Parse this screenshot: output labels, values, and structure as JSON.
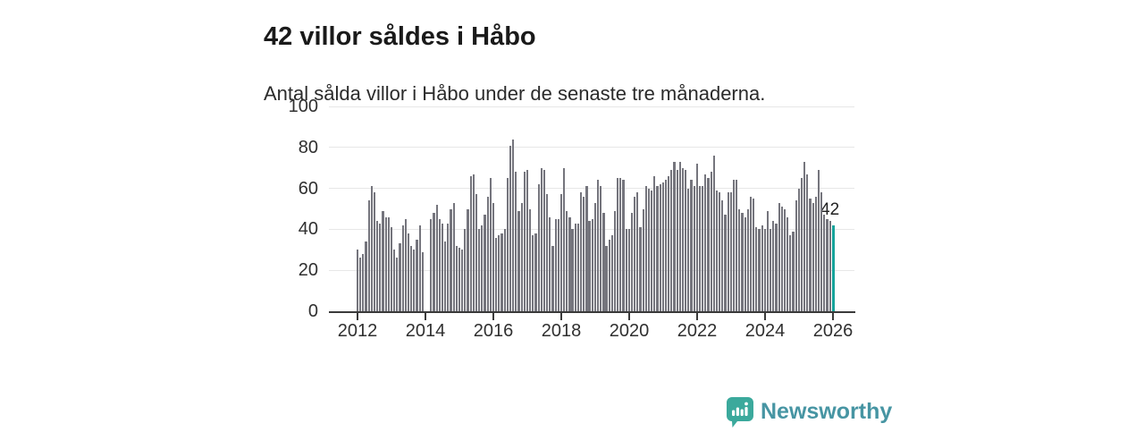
{
  "header": {
    "title": "42 villor såldes i Håbo",
    "subtitle": "Antal sålda villor i Håbo under de senaste tre månaderna."
  },
  "chart_data": {
    "type": "bar",
    "title": "42 villor såldes i Håbo",
    "subtitle": "Antal sålda villor i Håbo under de senaste tre månaderna.",
    "x_frequency": "monthly",
    "x_start": "2012-01",
    "x_end": "2026-01",
    "x_tick_labels": [
      "2012",
      "2014",
      "2016",
      "2018",
      "2020",
      "2022",
      "2024",
      "2026"
    ],
    "y_ticks": [
      0,
      20,
      40,
      60,
      80,
      100
    ],
    "ylim": [
      0,
      100
    ],
    "grid": "horizontal",
    "values": [
      30,
      26,
      28,
      34,
      54,
      61,
      58,
      44,
      43,
      49,
      46,
      46,
      41,
      30,
      26,
      33,
      42,
      45,
      38,
      32,
      30,
      35,
      42,
      29,
      null,
      null,
      45,
      48,
      52,
      45,
      43,
      34,
      43,
      50,
      53,
      32,
      31,
      30,
      40,
      50,
      66,
      67,
      57,
      40,
      42,
      47,
      56,
      65,
      53,
      36,
      37,
      38,
      40,
      65,
      81,
      84,
      68,
      49,
      53,
      68,
      69,
      50,
      37,
      38,
      62,
      70,
      69,
      57,
      46,
      32,
      45,
      45,
      57,
      70,
      49,
      46,
      40,
      43,
      43,
      58,
      56,
      61,
      44,
      45,
      53,
      64,
      61,
      48,
      32,
      35,
      37,
      49,
      65,
      65,
      64,
      40,
      40,
      48,
      56,
      58,
      41,
      50,
      61,
      60,
      59,
      66,
      61,
      62,
      63,
      64,
      66,
      69,
      73,
      69,
      73,
      70,
      69,
      60,
      64,
      61,
      72,
      61,
      61,
      67,
      65,
      68,
      76,
      59,
      58,
      54,
      47,
      58,
      58,
      64,
      64,
      50,
      48,
      46,
      50,
      56,
      55,
      41,
      40,
      42,
      40,
      49,
      40,
      44,
      43,
      53,
      51,
      50,
      46,
      37,
      39,
      54,
      60,
      65,
      73,
      67,
      55,
      53,
      56,
      69,
      58,
      47,
      45,
      44,
      42
    ],
    "highlight_last": true,
    "highlight_value": 42,
    "annotation": "42",
    "colors": {
      "bar": "#75757d",
      "highlight": "#16a39b",
      "grid": "#e7e7e7",
      "axis": "#3a3a3a",
      "text": "#303030"
    }
  },
  "footer": {
    "brand": "Newsworthy",
    "brand_color": "#4795a3",
    "icon": "newsworthy-speech-bubble-chart",
    "icon_color": "#3ba99c"
  }
}
